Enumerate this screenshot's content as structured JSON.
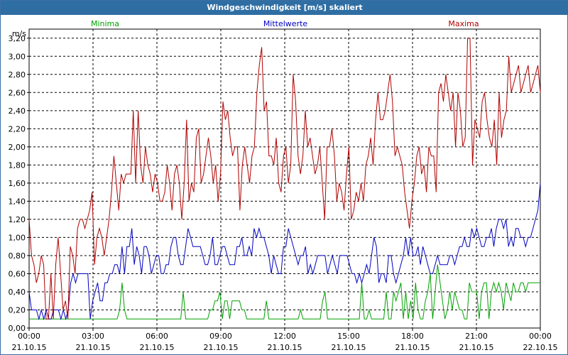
{
  "title": "Windgeschwindigkeit [m/s] skaliert",
  "colors": {
    "background": "#ffffff",
    "titlebar": "#2f6ea3",
    "grid": "#000000",
    "minima": "#00a000",
    "mittel": "#0000c0",
    "maxima": "#b00000"
  },
  "chart_data": {
    "type": "line",
    "title": "Windgeschwindigkeit [m/s] skaliert",
    "ylabel": "m/s",
    "ylim": [
      0,
      3.3
    ],
    "xlim": [
      "21.10.15 00:00",
      "22.10.15 00:00"
    ],
    "y_ticks": [
      "0,00",
      "0,20",
      "0,40",
      "0,60",
      "0,80",
      "1,00",
      "1,20",
      "1,40",
      "1,60",
      "1,80",
      "2,00",
      "2,20",
      "2,40",
      "2,60",
      "2,80",
      "3,00",
      "3,20"
    ],
    "x_ticks": [
      {
        "time": "00:00",
        "date": "21.10.15"
      },
      {
        "time": "03:00",
        "date": "21.10.15"
      },
      {
        "time": "06:00",
        "date": "21.10.15"
      },
      {
        "time": "09:00",
        "date": "21.10.15"
      },
      {
        "time": "12:00",
        "date": "21.10.15"
      },
      {
        "time": "15:00",
        "date": "21.10.15"
      },
      {
        "time": "18:00",
        "date": "21.10.15"
      },
      {
        "time": "21:00",
        "date": "21.10.15"
      },
      {
        "time": "00:00",
        "date": "22.10.15"
      }
    ],
    "grid": true,
    "legend_position": "top",
    "sample_interval_minutes": 10,
    "series": [
      {
        "name": "Minima",
        "values": [
          0.1,
          0.1,
          0.1,
          0.1,
          0.1,
          0.1,
          0.1,
          0.1,
          0.1,
          0.1,
          0.1,
          0.1,
          0.1,
          0.1,
          0.1,
          0.1,
          0.1,
          0.1,
          0.1,
          0.1,
          0.1,
          0.1,
          0.1,
          0.1,
          0.1,
          0.1,
          0.1,
          0.1,
          0.1,
          0.1,
          0.1,
          0.1,
          0.1,
          0.1,
          0.1,
          0.1,
          0.1,
          0.2,
          0.5,
          0.2,
          0.1,
          0.1,
          0.1,
          0.1,
          0.1,
          0.1,
          0.1,
          0.1,
          0.1,
          0.1,
          0.1,
          0.1,
          0.1,
          0.1,
          0.1,
          0.1,
          0.1,
          0.1,
          0.1,
          0.1,
          0.1,
          0.1,
          0.1,
          0.4,
          0.1,
          0.1,
          0.1,
          0.1,
          0.1,
          0.1,
          0.1,
          0.1,
          0.1,
          0.1,
          0.2,
          0.2,
          0.3,
          0.3,
          0.4,
          0.1,
          0.3,
          0.3,
          0.1,
          0.3,
          0.3,
          0.3,
          0.3,
          0.2,
          0.2,
          0.1,
          0.1,
          0.1,
          0.1,
          0.1,
          0.1,
          0.1,
          0.1,
          0.3,
          0.1,
          0.1,
          0.1,
          0.1,
          0.1,
          0.1,
          0.1,
          0.1,
          0.1,
          0.1,
          0.1,
          0.1,
          0.1,
          0.2,
          0.1,
          0.1,
          0.1,
          0.1,
          0.1,
          0.1,
          0.1,
          0.1,
          0.3,
          0.4,
          0.1,
          0.1,
          0.1,
          0.1,
          0.1,
          0.1,
          0.1,
          0.1,
          0.1,
          0.1,
          0.1,
          0.1,
          0.1,
          0.1,
          0.5,
          0.1,
          0.1,
          0.2,
          0.1,
          0.1,
          0.1,
          0.1,
          0.1,
          0.1,
          0.4,
          0.1,
          0.1,
          0.4,
          0.3,
          0.4,
          0.5,
          0.1,
          0.4,
          0.1,
          0.3,
          0.1,
          0.5,
          0.2,
          0.1,
          0.1,
          0.3,
          0.4,
          0.6,
          0.1,
          0.4,
          0.7,
          0.5,
          0.3,
          0.1,
          0.2,
          0.4,
          0.2,
          0.4,
          0.3,
          0.2,
          0.2,
          0.1,
          0.1,
          0.5,
          0.4,
          0.4,
          0.4,
          0.1,
          0.4,
          0.5,
          0.5,
          0.1,
          0.4,
          0.5,
          0.4,
          0.5,
          0.4,
          0.2,
          0.5,
          0.4,
          0.3,
          0.5,
          0.4,
          0.4,
          0.5,
          0.5,
          0.4,
          0.5,
          0.5,
          0.5,
          0.5,
          0.5,
          0.5
        ]
      },
      {
        "name": "Mittelwerte",
        "values": [
          0.4,
          0.2,
          0.2,
          0.2,
          0.1,
          0.2,
          0.1,
          0.2,
          0.1,
          0.1,
          0.2,
          0.2,
          0.2,
          0.1,
          0.2,
          0.1,
          0.2,
          0.5,
          0.6,
          0.5,
          0.6,
          0.6,
          0.6,
          0.6,
          0.6,
          0.1,
          0.3,
          0.4,
          0.5,
          0.3,
          0.3,
          0.5,
          0.5,
          0.6,
          0.6,
          0.7,
          0.7,
          0.6,
          0.9,
          0.6,
          0.9,
          0.9,
          1.1,
          0.7,
          0.9,
          0.8,
          0.6,
          0.9,
          0.9,
          0.8,
          0.6,
          0.7,
          0.8,
          0.8,
          0.6,
          0.6,
          0.7,
          0.7,
          0.9,
          1.0,
          1.0,
          0.8,
          0.7,
          0.7,
          0.9,
          1.1,
          1.0,
          0.9,
          0.9,
          0.9,
          0.9,
          0.8,
          0.7,
          0.7,
          0.8,
          1.0,
          0.7,
          0.7,
          0.8,
          0.9,
          0.9,
          0.8,
          0.7,
          0.7,
          0.7,
          0.9,
          0.9,
          1.0,
          0.8,
          0.8,
          0.9,
          0.8,
          1.1,
          1.0,
          1.1,
          1.0,
          1.0,
          0.9,
          0.8,
          0.6,
          0.8,
          0.7,
          0.6,
          0.6,
          0.9,
          0.9,
          1.1,
          1.0,
          0.9,
          0.8,
          0.7,
          0.8,
          0.8,
          0.9,
          0.6,
          0.7,
          0.6,
          0.7,
          0.8,
          0.8,
          0.8,
          0.8,
          0.6,
          0.7,
          0.8,
          0.7,
          0.6,
          0.8,
          0.8,
          0.8,
          0.8,
          0.7,
          0.6,
          0.6,
          0.5,
          0.6,
          0.5,
          0.6,
          0.7,
          0.6,
          0.8,
          1.0,
          0.9,
          0.5,
          0.6,
          0.6,
          0.5,
          0.8,
          0.8,
          0.6,
          0.5,
          0.6,
          0.7,
          0.8,
          1.0,
          0.8,
          1.0,
          0.8,
          0.8,
          0.9,
          0.7,
          0.9,
          0.8,
          0.7,
          0.6,
          0.6,
          0.7,
          0.8,
          0.7,
          0.7,
          0.7,
          0.7,
          0.8,
          0.8,
          0.7,
          0.8,
          0.9,
          0.9,
          1.0,
          0.9,
          0.9,
          1.1,
          1.0,
          1.1,
          1.0,
          0.9,
          0.9,
          1.0,
          1.0,
          1.1,
          0.9,
          1.1,
          1.2,
          1.2,
          1.1,
          1.2,
          0.9,
          1.0,
          0.9,
          1.1,
          1.1,
          1.0,
          1.0,
          0.9,
          1.0,
          1.0,
          1.1,
          1.2,
          1.3,
          1.6
        ]
      },
      {
        "name": "Maxima",
        "values": [
          1.2,
          0.8,
          0.7,
          0.5,
          0.6,
          0.8,
          0.7,
          0.1,
          0.1,
          0.6,
          0.1,
          0.7,
          1.0,
          0.6,
          0.2,
          0.3,
          0.1,
          0.9,
          0.8,
          0.6,
          1.1,
          1.2,
          1.2,
          1.1,
          1.2,
          1.3,
          1.5,
          0.7,
          1.0,
          1.1,
          1.0,
          0.8,
          1.0,
          1.2,
          1.5,
          1.9,
          1.6,
          1.3,
          1.7,
          1.6,
          1.7,
          1.7,
          1.7,
          2.4,
          1.6,
          2.4,
          1.8,
          1.6,
          2.0,
          1.8,
          1.7,
          1.5,
          1.7,
          1.6,
          1.4,
          1.4,
          1.5,
          1.8,
          1.6,
          1.3,
          1.7,
          1.8,
          1.6,
          1.2,
          1.6,
          2.3,
          1.4,
          1.6,
          1.5,
          2.1,
          2.2,
          1.6,
          1.7,
          1.9,
          2.1,
          1.9,
          1.6,
          1.8,
          1.4,
          1.7,
          2.5,
          2.3,
          2.4,
          2.1,
          1.9,
          2.0,
          2.0,
          1.3,
          1.8,
          2.0,
          1.8,
          1.6,
          1.9,
          2.0,
          2.6,
          2.9,
          3.1,
          2.4,
          2.5,
          1.9,
          1.9,
          1.8,
          2.1,
          1.6,
          1.5,
          1.9,
          2.0,
          1.6,
          1.8,
          2.8,
          2.5,
          1.9,
          1.7,
          1.9,
          2.4,
          2.0,
          2.1,
          1.9,
          1.7,
          1.8,
          2.0,
          1.6,
          1.2,
          2.0,
          2.0,
          2.2,
          1.9,
          1.4,
          1.6,
          1.5,
          1.3,
          1.7,
          2.0,
          1.2,
          1.3,
          1.5,
          1.4,
          1.6,
          1.4,
          1.8,
          1.9,
          2.1,
          1.8,
          2.3,
          2.6,
          2.3,
          2.3,
          2.4,
          2.6,
          2.8,
          2.5,
          1.9,
          2.0,
          1.9,
          1.8,
          1.5,
          1.3,
          1.1,
          1.4,
          1.6,
          1.9,
          2.0,
          1.7,
          1.8,
          1.5,
          2.0,
          1.9,
          1.9,
          1.5,
          2.6,
          2.7,
          2.5,
          2.8,
          2.6,
          2.4,
          2.6,
          2.0,
          2.6,
          2.4,
          2.0,
          2.1,
          3.2,
          3.2,
          1.8,
          2.3,
          2.2,
          2.1,
          2.5,
          2.6,
          2.3,
          2.1,
          2.0,
          2.3,
          1.8,
          2.6,
          2.1,
          2.3,
          2.4,
          3.0,
          2.6,
          2.7,
          2.8,
          2.9,
          2.6,
          2.7,
          2.8,
          2.9,
          2.6,
          2.7,
          2.8,
          2.9,
          2.6
        ]
      }
    ]
  }
}
